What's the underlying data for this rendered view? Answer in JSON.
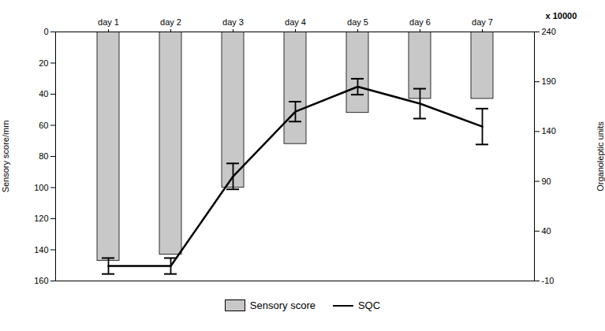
{
  "chart_data": {
    "type": "bar",
    "categories": [
      "day 1",
      "day 2",
      "day 3",
      "day 4",
      "day 5",
      "day 6",
      "day 7"
    ],
    "series": [
      {
        "name": "Sensory score",
        "type": "bar",
        "color": "#c8c8c8",
        "values": [
          147,
          143,
          100,
          72,
          52,
          43,
          43
        ]
      },
      {
        "name": "SQC",
        "type": "line",
        "color": "#000000",
        "axis": "y2",
        "values": [
          5,
          5,
          95,
          160,
          185,
          168,
          145
        ],
        "errors": [
          8,
          8,
          13,
          10,
          8,
          15,
          18
        ]
      }
    ],
    "ylabel": "Sensory score/mm",
    "y2label": "Organoleptic units",
    "annotations": [
      "x 10000"
    ],
    "ylim": [
      160,
      0
    ],
    "yticks": [
      0,
      20,
      40,
      60,
      80,
      100,
      120,
      140,
      160
    ],
    "y2lim": [
      -10,
      240
    ],
    "y2ticks": [
      -10,
      40,
      90,
      140,
      190,
      240
    ],
    "grid": false,
    "legend": "bottom"
  }
}
